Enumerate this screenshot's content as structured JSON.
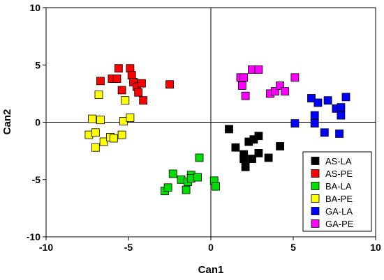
{
  "chart_data": {
    "type": "scatter",
    "title": "",
    "xlabel": "Can1",
    "ylabel": "Can2",
    "xlim": [
      -10,
      10
    ],
    "ylim": [
      -10,
      10
    ],
    "xticks": [
      -10,
      -5,
      0,
      5,
      10
    ],
    "yticks": [
      -10,
      -5,
      0,
      5,
      10
    ],
    "grid": false,
    "zero_lines": true,
    "marker": "square",
    "legend_position": "bottom-right",
    "series": [
      {
        "name": "AS-LA",
        "color": "#000000",
        "points": [
          [
            1.1,
            -0.6
          ],
          [
            1.5,
            -2.2
          ],
          [
            2.0,
            -2.8
          ],
          [
            2.0,
            -3.2
          ],
          [
            2.1,
            -3.9
          ],
          [
            2.3,
            -1.7
          ],
          [
            2.5,
            -3.2
          ],
          [
            2.6,
            -1.5
          ],
          [
            2.9,
            -1.2
          ],
          [
            2.9,
            -2.7
          ],
          [
            3.5,
            -3.1
          ],
          [
            4.2,
            -2.1
          ]
        ]
      },
      {
        "name": "AS-PE",
        "color": "#ff0000",
        "points": [
          [
            -6.7,
            3.6
          ],
          [
            -6.0,
            3.8
          ],
          [
            -5.7,
            3.8
          ],
          [
            -5.6,
            4.7
          ],
          [
            -5.4,
            2.8
          ],
          [
            -4.9,
            4.7
          ],
          [
            -4.8,
            4.1
          ],
          [
            -4.7,
            3.5
          ],
          [
            -4.5,
            3.1
          ],
          [
            -4.4,
            2.6
          ],
          [
            -4.2,
            3.4
          ],
          [
            -4.1,
            1.9
          ],
          [
            -2.5,
            3.3
          ]
        ]
      },
      {
        "name": "BA-LA",
        "color": "#00dd00",
        "points": [
          [
            -2.8,
            -6.0
          ],
          [
            -2.6,
            -5.7
          ],
          [
            -2.3,
            -4.5
          ],
          [
            -1.8,
            -5.0
          ],
          [
            -1.5,
            -5.9
          ],
          [
            -1.4,
            -5.2
          ],
          [
            -1.2,
            -4.6
          ],
          [
            -1.2,
            -4.9
          ],
          [
            -0.8,
            -4.8
          ],
          [
            -0.7,
            -3.1
          ],
          [
            0.2,
            -5.1
          ],
          [
            0.3,
            -5.6
          ]
        ]
      },
      {
        "name": "BA-PE",
        "color": "#ffff00",
        "points": [
          [
            -7.4,
            -1.1
          ],
          [
            -7.2,
            0.3
          ],
          [
            -7.0,
            -2.2
          ],
          [
            -7.0,
            -0.9
          ],
          [
            -6.7,
            0.2
          ],
          [
            -6.8,
            2.4
          ],
          [
            -6.5,
            -1.7
          ],
          [
            -6.1,
            -1.3
          ],
          [
            -5.9,
            -1.4
          ],
          [
            -5.4,
            -1.1
          ],
          [
            -5.3,
            0.1
          ],
          [
            -5.2,
            1.9
          ],
          [
            -4.9,
            0.4
          ]
        ]
      },
      {
        "name": "GA-LA",
        "color": "#0000ff",
        "points": [
          [
            5.1,
            -0.1
          ],
          [
            6.1,
            2.1
          ],
          [
            6.3,
            0.6
          ],
          [
            6.5,
            1.7
          ],
          [
            6.3,
            -0.1
          ],
          [
            6.9,
            -0.9
          ],
          [
            7.1,
            1.9
          ],
          [
            7.6,
            1.2
          ],
          [
            7.9,
            1.3
          ],
          [
            7.8,
            -1.0
          ],
          [
            7.9,
            0.6
          ],
          [
            8.2,
            2.2
          ]
        ]
      },
      {
        "name": "GA-PE",
        "color": "#ff00ff",
        "points": [
          [
            1.8,
            3.9
          ],
          [
            1.9,
            3.2
          ],
          [
            2.0,
            3.9
          ],
          [
            2.1,
            2.3
          ],
          [
            2.5,
            4.6
          ],
          [
            2.9,
            4.6
          ],
          [
            3.6,
            2.5
          ],
          [
            3.9,
            2.7
          ],
          [
            4.2,
            3.2
          ],
          [
            4.5,
            2.7
          ],
          [
            5.1,
            3.9
          ]
        ]
      }
    ]
  }
}
